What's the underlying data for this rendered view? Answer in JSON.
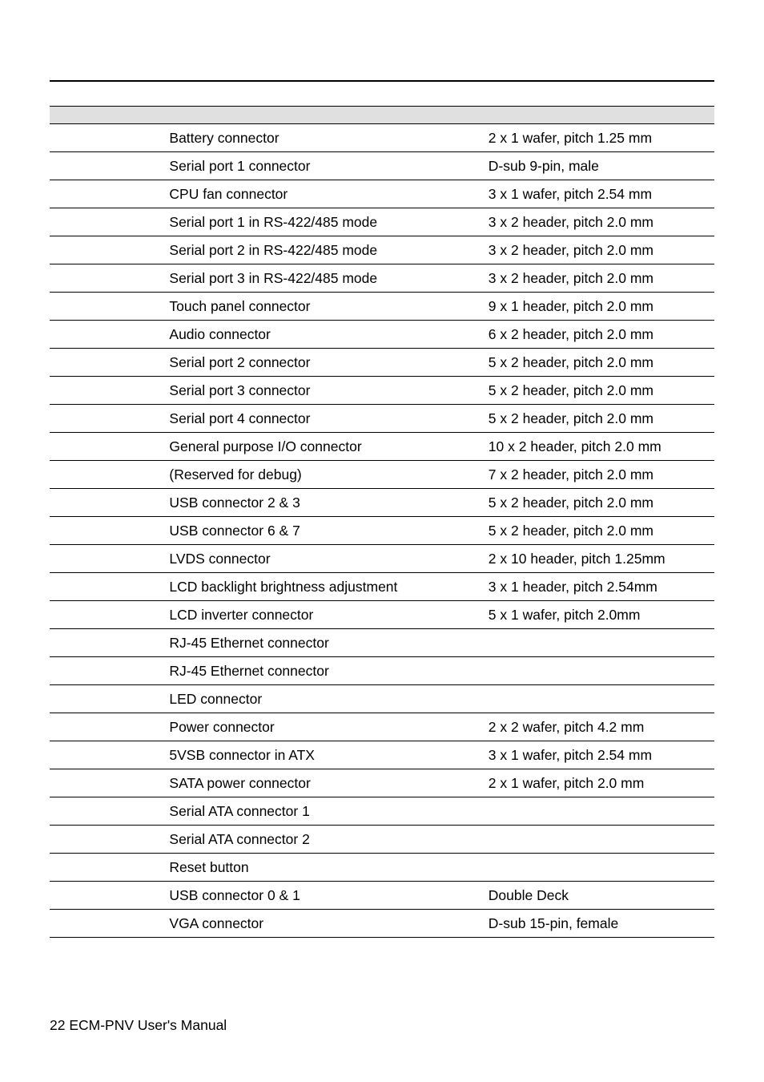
{
  "table": {
    "rows": [
      {
        "label": "",
        "desc": "Battery connector",
        "note": "2 x 1 wafer, pitch 1.25 mm"
      },
      {
        "label": "",
        "desc": "Serial port 1 connector",
        "note": "D-sub 9-pin, male"
      },
      {
        "label": "",
        "desc": "CPU fan connector",
        "note": "3 x 1 wafer, pitch 2.54 mm"
      },
      {
        "label": "",
        "desc": "Serial port 1 in RS-422/485 mode",
        "note": "3 x 2 header, pitch 2.0 mm"
      },
      {
        "label": "",
        "desc": "Serial port 2 in RS-422/485 mode",
        "note": "3 x 2 header, pitch 2.0 mm"
      },
      {
        "label": "",
        "desc": "Serial port 3 in RS-422/485 mode",
        "note": "3 x 2 header, pitch 2.0 mm"
      },
      {
        "label": "",
        "desc": "Touch panel connector",
        "note": "9 x 1 header, pitch 2.0 mm"
      },
      {
        "label": "",
        "desc": "Audio connector",
        "note": "6 x 2 header, pitch 2.0 mm"
      },
      {
        "label": "",
        "desc": "Serial port 2 connector",
        "note": "5 x 2 header, pitch 2.0 mm"
      },
      {
        "label": "",
        "desc": "Serial port 3 connector",
        "note": "5 x 2 header, pitch 2.0 mm"
      },
      {
        "label": "",
        "desc": "Serial port 4 connector",
        "note": "5 x 2 header, pitch 2.0 mm"
      },
      {
        "label": "",
        "desc": "General purpose I/O connector",
        "note": "10 x 2 header, pitch 2.0 mm"
      },
      {
        "label": "",
        "desc": "(Reserved for debug)",
        "note": "7 x 2 header, pitch 2.0 mm"
      },
      {
        "label": "",
        "desc": "USB connector 2 & 3",
        "note": "5 x 2 header, pitch 2.0 mm"
      },
      {
        "label": "",
        "desc": "USB connector 6 & 7",
        "note": "5 x 2 header, pitch 2.0 mm"
      },
      {
        "label": "",
        "desc": "LVDS connector",
        "note": "2 x 10 header, pitch 1.25mm"
      },
      {
        "label": "",
        "desc": "LCD backlight brightness adjustment",
        "note": "3 x 1 header, pitch 2.54mm"
      },
      {
        "label": "",
        "desc": "LCD inverter connector",
        "note": "5 x 1 wafer, pitch 2.0mm"
      },
      {
        "label": "",
        "desc": "RJ-45 Ethernet connector",
        "note": ""
      },
      {
        "label": "",
        "desc": "RJ-45 Ethernet connector",
        "note": ""
      },
      {
        "label": "",
        "desc": "LED connector",
        "note": ""
      },
      {
        "label": "",
        "desc": "Power connector",
        "note": "2 x 2 wafer, pitch 4.2 mm"
      },
      {
        "label": "",
        "desc": "5VSB connector in ATX",
        "note": "3 x 1 wafer, pitch 2.54 mm"
      },
      {
        "label": "",
        "desc": "SATA power connector",
        "note": "2 x 1 wafer, pitch 2.0 mm"
      },
      {
        "label": "",
        "desc": "Serial ATA connector 1",
        "note": ""
      },
      {
        "label": "",
        "desc": "Serial ATA connector 2",
        "note": ""
      },
      {
        "label": "",
        "desc": "Reset button",
        "note": ""
      },
      {
        "label": "",
        "desc": "USB connector 0 & 1",
        "note": "Double Deck"
      },
      {
        "label": "",
        "desc": "VGA connector",
        "note": "D-sub 15-pin, female"
      }
    ]
  },
  "footer": "22 ECM-PNV User's Manual"
}
